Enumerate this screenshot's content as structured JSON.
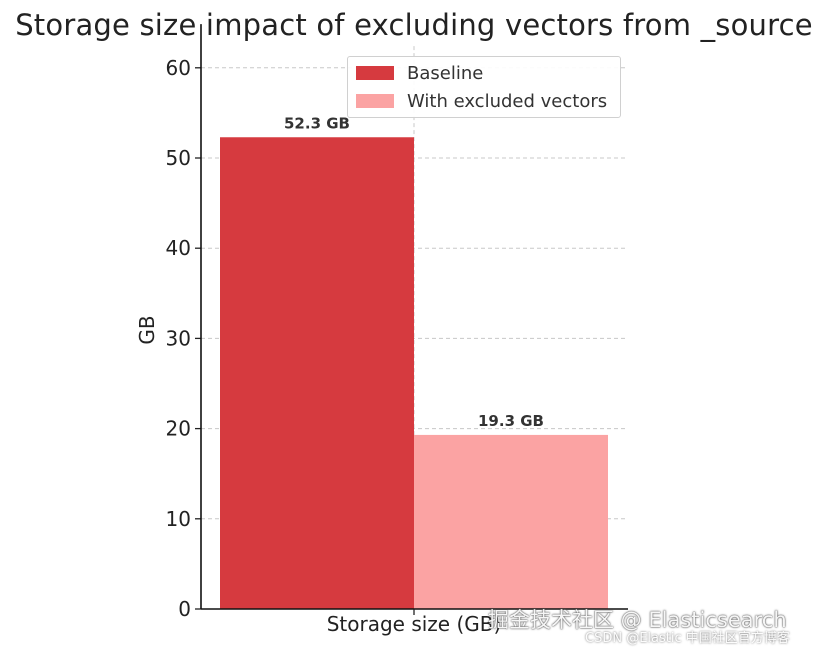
{
  "chart_data": {
    "type": "bar",
    "title": "Storage size impact of excluding vectors from _source",
    "xlabel": "Storage size (GB)",
    "ylabel": "GB",
    "categories": [
      "Storage size (GB)"
    ],
    "series": [
      {
        "name": "Baseline",
        "values": [
          52.3
        ],
        "color": "#d63a3f",
        "label": "52.3 GB"
      },
      {
        "name": "With excluded vectors",
        "values": [
          19.3
        ],
        "color": "#fba3a3",
        "label": "19.3 GB"
      }
    ],
    "ylim": [
      0,
      62.4
    ],
    "yticks": [
      0,
      10,
      20,
      30,
      40,
      50,
      60
    ],
    "ytick_labels": [
      "0",
      "10",
      "20",
      "30",
      "40",
      "50",
      "60"
    ],
    "grid": true,
    "legend_position": "top-right"
  },
  "watermark": {
    "main": "掘金技术社区 @ Elasticsearch",
    "sub": "CSDN @Elastic 中国社区官方博客"
  }
}
